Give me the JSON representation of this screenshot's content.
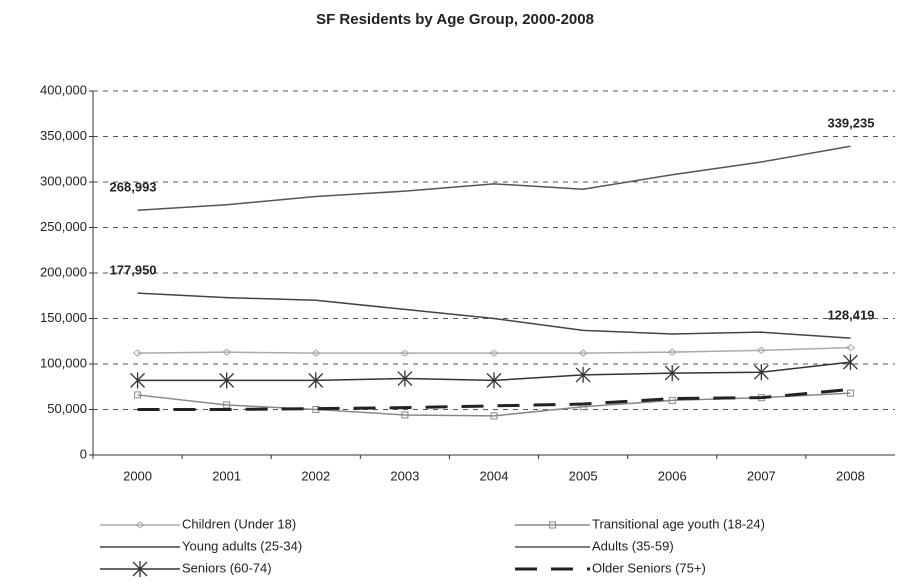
{
  "chart_data": {
    "type": "line",
    "title": "SF Residents by Age Group, 2000-2008",
    "categories": [
      "2000",
      "2001",
      "2002",
      "2003",
      "2004",
      "2005",
      "2006",
      "2007",
      "2008"
    ],
    "ylim": [
      0,
      400000
    ],
    "yticks": [
      0,
      {
        "value": 50000,
        "label": "50,000"
      },
      {
        "value": 100000,
        "label": "100,000"
      },
      {
        "value": 150000,
        "label": "150,000"
      },
      {
        "value": 200000,
        "label": "200,000"
      },
      {
        "value": 250000,
        "label": "250,000"
      },
      {
        "value": 300000,
        "label": "300,000"
      },
      {
        "value": 350000,
        "label": "350,000"
      },
      {
        "value": 400000,
        "label": "400,000"
      }
    ],
    "grid": true,
    "series": [
      {
        "name": "Children (Under 18)",
        "color": "#aaaaaa",
        "marker": "diamond",
        "values": [
          112000,
          113000,
          112000,
          112000,
          112000,
          112000,
          113000,
          115000,
          118000
        ]
      },
      {
        "name": "Transitional age youth (18-24)",
        "color": "#888888",
        "marker": "square",
        "values": [
          66000,
          55000,
          50000,
          44000,
          43000,
          53000,
          60000,
          63000,
          68000
        ]
      },
      {
        "name": "Young adults (25-34)",
        "color": "#444444",
        "marker": "none",
        "values": [
          177950,
          173000,
          170000,
          160000,
          150000,
          137000,
          133000,
          135000,
          128419
        ],
        "value_labels": [
          "177,950",
          null,
          null,
          null,
          null,
          null,
          null,
          null,
          "128,419"
        ]
      },
      {
        "name": "Adults (35-59)",
        "color": "#555555",
        "marker": "none",
        "values": [
          268993,
          275000,
          284000,
          290000,
          298000,
          292000,
          308000,
          322000,
          339235
        ],
        "value_labels": [
          "268,993",
          null,
          null,
          null,
          null,
          null,
          null,
          null,
          "339,235"
        ]
      },
      {
        "name": "Seniors (60-74)",
        "color": "#333333",
        "marker": "asterisk",
        "values": [
          82000,
          82000,
          82000,
          84000,
          82000,
          88000,
          90000,
          91000,
          102000
        ]
      },
      {
        "name": "Older Seniors (75+)",
        "color": "#222222",
        "marker": "dash",
        "values": [
          50000,
          50000,
          51000,
          52000,
          54000,
          56000,
          62000,
          63000,
          72000
        ]
      }
    ]
  }
}
